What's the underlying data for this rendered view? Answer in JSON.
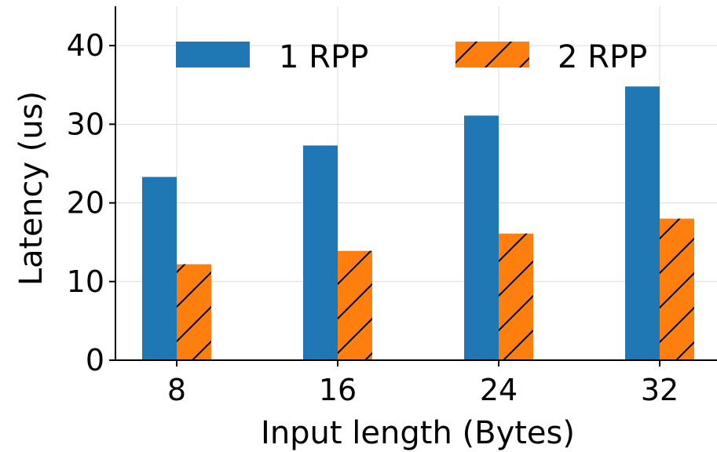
{
  "chart_data": {
    "type": "bar",
    "categories": [
      "8",
      "16",
      "24",
      "32"
    ],
    "series": [
      {
        "name": "1 RPP",
        "values": [
          23.3,
          27.3,
          31.1,
          34.8
        ],
        "color": "#1f77b4",
        "hatch": false
      },
      {
        "name": "2 RPP",
        "values": [
          12.2,
          13.9,
          16.1,
          18.0
        ],
        "color": "#ff7f0e",
        "hatch": true
      }
    ],
    "title": "",
    "xlabel": "Input length (Bytes)",
    "ylabel": "Latency (us)",
    "ylim": [
      0,
      45
    ],
    "yticks": [
      0,
      10,
      20,
      30,
      40
    ],
    "grid": true,
    "legend_position": "top",
    "legend_columns": 2
  }
}
